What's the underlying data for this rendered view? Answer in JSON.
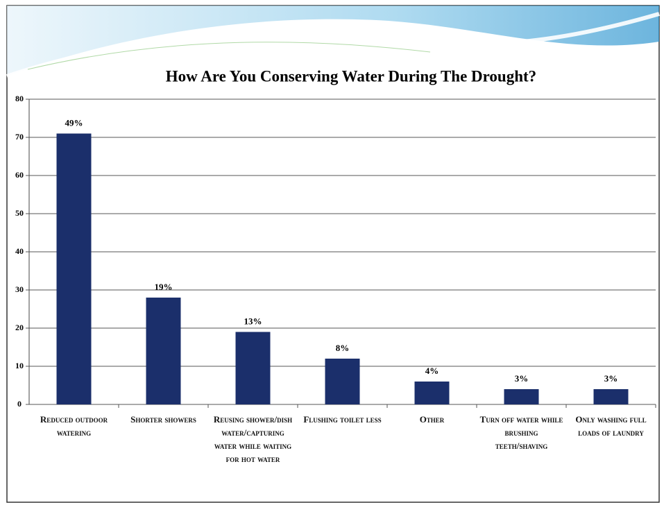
{
  "chart_data": {
    "type": "bar",
    "title": "How Are You Conserving Water During The Drought?",
    "categories": [
      "Reduced outdoor watering",
      "Shorter showers",
      "Reusing shower/dish water/capturing water while waiting for hot water",
      "Flushing toilet less",
      "Other",
      "Turn off water while brushing teeth/shaving",
      "Only washing full loads of laundry"
    ],
    "values": [
      71,
      28,
      19,
      12,
      6,
      4,
      4
    ],
    "percent_labels": [
      "49%",
      "19%",
      "13%",
      "8%",
      "4%",
      "3%",
      "3%"
    ],
    "color": "#1b2f6b",
    "ylim": [
      0,
      80
    ],
    "yticks": [
      0,
      10,
      20,
      30,
      40,
      50,
      60,
      70,
      80
    ],
    "grid": true
  }
}
